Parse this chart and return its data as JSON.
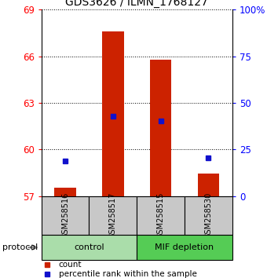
{
  "title": "GDS3626 / ILMN_1768127",
  "samples": [
    "GSM258516",
    "GSM258517",
    "GSM258515",
    "GSM258530"
  ],
  "bar_base": 57,
  "bar_tops": [
    57.55,
    67.6,
    65.8,
    58.45
  ],
  "percentile_values": [
    19.0,
    43.0,
    40.5,
    20.5
  ],
  "ylim_left": [
    57,
    69
  ],
  "ylim_right": [
    0,
    100
  ],
  "yticks_left": [
    57,
    60,
    63,
    66,
    69
  ],
  "yticks_right": [
    0,
    25,
    50,
    75,
    100
  ],
  "bar_color": "#CC2200",
  "dot_color": "#1111CC",
  "bar_width": 0.45,
  "legend_count": "count",
  "legend_pct": "percentile rank within the sample",
  "protocol_label": "protocol",
  "group_defs": [
    {
      "indices": [
        0,
        1
      ],
      "label": "control",
      "color": "#AADDAA"
    },
    {
      "indices": [
        2,
        3
      ],
      "label": "MIF depletion",
      "color": "#55CC55"
    }
  ],
  "sample_box_color": "#C8C8C8"
}
